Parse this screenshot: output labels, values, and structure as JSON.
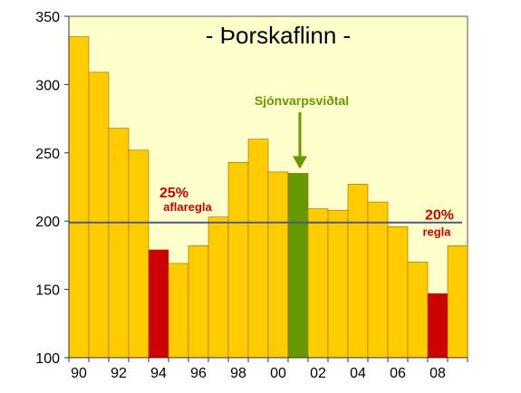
{
  "chart_data": {
    "type": "bar",
    "title": "- Þorskaflinn -",
    "xlabel": "",
    "ylabel": "",
    "ylim": [
      100,
      350
    ],
    "yticks": [
      100,
      150,
      200,
      250,
      300,
      350
    ],
    "x_tick_labels": [
      "90",
      "92",
      "94",
      "96",
      "98",
      "00",
      "02",
      "04",
      "06",
      "08"
    ],
    "x": [
      1990,
      1991,
      1992,
      1993,
      1994,
      1995,
      1996,
      1997,
      1998,
      1999,
      2000,
      2001,
      2002,
      2003,
      2004,
      2005,
      2006,
      2007,
      2008,
      2009
    ],
    "values": [
      335,
      309,
      268,
      252,
      179,
      169,
      182,
      203,
      243,
      260,
      236,
      235,
      209,
      208,
      227,
      214,
      196,
      170,
      147,
      182
    ],
    "bar_colors": [
      "#FFCC00",
      "#FFCC00",
      "#FFCC00",
      "#FFCC00",
      "#CC0000",
      "#FFCC00",
      "#FFCC00",
      "#FFCC00",
      "#FFCC00",
      "#FFCC00",
      "#FFCC00",
      "#669900",
      "#FFCC00",
      "#FFCC00",
      "#FFCC00",
      "#FFCC00",
      "#FFCC00",
      "#FFCC00",
      "#CC0000",
      "#FFCC00"
    ],
    "reference_line": {
      "y": 199,
      "color": "#4A5A8C"
    },
    "annotations": [
      {
        "text": "25%",
        "color": "#CC0000"
      },
      {
        "text": "aflaregla",
        "color": "#CC0000"
      },
      {
        "text": "20%",
        "color": "#CC0000"
      },
      {
        "text": "regla",
        "color": "#CC0000"
      },
      {
        "text": "Sjónvarpsviðtal",
        "color": "#669900",
        "points_to_x": 2001
      }
    ],
    "grid": false,
    "legend": "none",
    "colors": {
      "plot_background": "#FFFFCC",
      "bar_default": "#FFCC00",
      "bar_highlight": "#CC0000",
      "bar_special": "#669900",
      "bar_edge": "#8A6A00",
      "frame": "#555555"
    }
  }
}
